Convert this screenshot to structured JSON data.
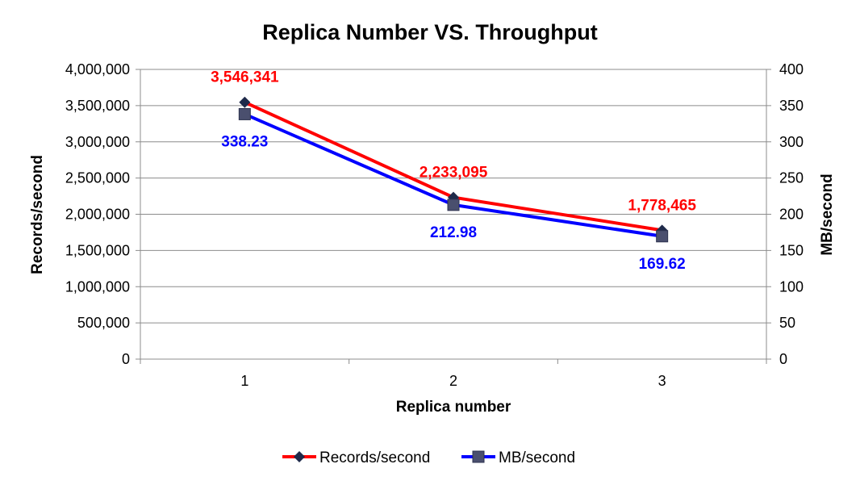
{
  "chart_data": {
    "type": "line",
    "title": "Replica Number VS. Throughput",
    "xlabel": "Replica number",
    "ylabel": "Records/second",
    "y2label": "MB/second",
    "categories": [
      "1",
      "2",
      "3"
    ],
    "ylim": [
      0,
      4000000
    ],
    "y2lim": [
      0,
      400
    ],
    "yticks": [
      "0",
      "500,000",
      "1,000,000",
      "1,500,000",
      "2,000,000",
      "2,500,000",
      "3,000,000",
      "3,500,000",
      "4,000,000"
    ],
    "y2ticks": [
      "0",
      "50",
      "100",
      "150",
      "200",
      "250",
      "300",
      "350",
      "400"
    ],
    "grid": true,
    "legend": "bottom",
    "series": [
      {
        "name": "Records/second",
        "axis": "left",
        "values": [
          3546341,
          2233095,
          1778465
        ],
        "labels": [
          "3,546,341",
          "2,233,095",
          "1,778,465"
        ],
        "line_color": "#ff0000",
        "label_color": "#ff0000",
        "marker": "diamond",
        "marker_color": "#1f2a4a"
      },
      {
        "name": "MB/second",
        "axis": "right",
        "values": [
          338.23,
          212.98,
          169.62
        ],
        "labels": [
          "338.23",
          "212.98",
          "169.62"
        ],
        "line_color": "#0000ff",
        "label_color": "#0000ff",
        "marker": "square",
        "marker_color": "#4a4f6e"
      }
    ]
  }
}
